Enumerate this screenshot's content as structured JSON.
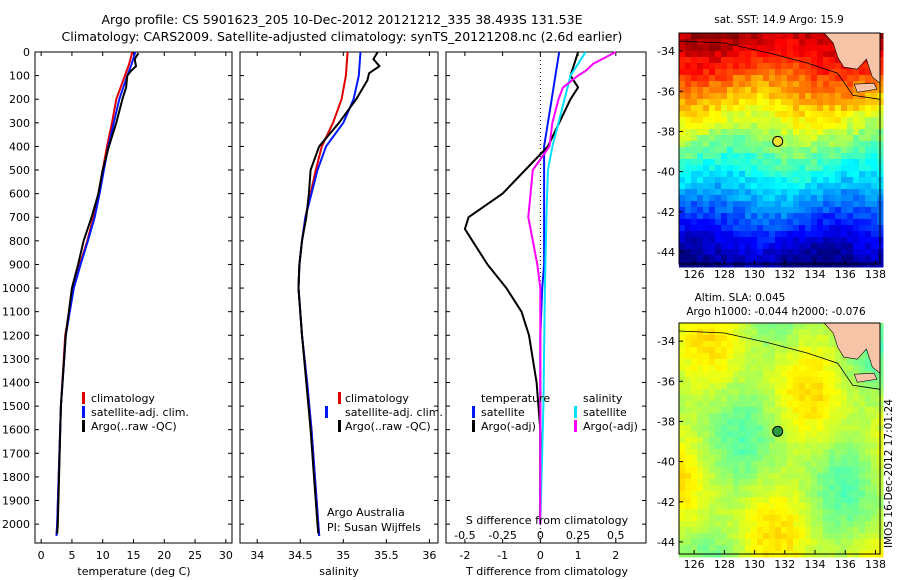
{
  "figure": {
    "title_line1": "Argo profile: CS 5901623_205 10-Dec-2012 20121212_335 38.493S 131.53E",
    "title_line2": "Climatology: CARS2009. Satellite-adjusted climatology: synTS_20121208.nc (2.6d earlier)",
    "credit_org": "Argo Australia",
    "credit_pi": "PI: Susan Wijffels",
    "imos_stamp": "IMOS 16-Dec-2012 17:01:24"
  },
  "colors": {
    "climatology": "#e00000",
    "satellite": "#0018ff",
    "argo": "#000000",
    "sal_satellite": "#00e0ff",
    "sal_argo": "#ff00ff"
  },
  "legend_profiles": [
    "climatology",
    "satellite-adj. clim.",
    "Argo(..raw -QC)"
  ],
  "legend_diff": {
    "temp_head": "temperature",
    "sal_head": "salinity",
    "temp_items": [
      "satellite",
      "Argo(-adj)"
    ],
    "sal_items": [
      "satellite",
      "Argo(-adj)"
    ]
  },
  "chart_data": [
    {
      "type": "line",
      "xlabel": "temperature (deg C)",
      "ylabel": "",
      "xlim": [
        -1,
        31
      ],
      "ylim": [
        2080,
        0
      ],
      "xticks": [
        0,
        5,
        10,
        15,
        20,
        25,
        30
      ],
      "yticks": [
        0,
        100,
        200,
        300,
        400,
        500,
        600,
        700,
        800,
        900,
        1000,
        1100,
        1200,
        1300,
        1400,
        1500,
        1600,
        1700,
        1800,
        1900,
        2000
      ],
      "series": [
        {
          "name": "climatology",
          "y": [
            0,
            50,
            100,
            200,
            300,
            400,
            500,
            600,
            700,
            800,
            900,
            1000,
            1200,
            1500,
            2000,
            2050
          ],
          "x": [
            14.8,
            14.3,
            13.6,
            12.2,
            11.5,
            10.7,
            10.0,
            9.3,
            8.5,
            7.5,
            6.3,
            5.2,
            3.9,
            3.2,
            2.6,
            2.5
          ]
        },
        {
          "name": "satellite-adj. clim.",
          "y": [
            0,
            50,
            100,
            200,
            300,
            400,
            500,
            600,
            700,
            800,
            900,
            1000,
            1200,
            1500,
            2000,
            2050
          ],
          "x": [
            15.3,
            14.7,
            14.0,
            12.7,
            11.8,
            10.9,
            10.2,
            9.5,
            8.7,
            7.6,
            6.4,
            5.3,
            4.0,
            3.2,
            2.6,
            2.5
          ]
        },
        {
          "name": "Argo(..raw -QC)",
          "y": [
            5,
            30,
            60,
            80,
            100,
            150,
            200,
            300,
            400,
            500,
            600,
            700,
            800,
            900,
            1000,
            1200,
            1500,
            2000,
            2040
          ],
          "x": [
            15.8,
            15.2,
            15.4,
            14.6,
            14.0,
            13.8,
            13.2,
            12.2,
            11.0,
            10.0,
            9.3,
            8.2,
            6.9,
            6.0,
            5.0,
            4.0,
            3.2,
            2.7,
            2.6
          ]
        }
      ]
    },
    {
      "type": "line",
      "xlabel": "salinity",
      "xlim": [
        33.8,
        36.1
      ],
      "ylim": [
        2080,
        0
      ],
      "xticks": [
        34,
        34.5,
        35,
        35.5,
        36
      ],
      "series": [
        {
          "name": "climatology",
          "y": [
            0,
            100,
            200,
            300,
            400,
            500,
            600,
            700,
            800,
            900,
            1000,
            1200,
            1400,
            1600,
            1800,
            2000,
            2050
          ],
          "x": [
            35.05,
            35.03,
            34.98,
            34.88,
            34.75,
            34.68,
            34.62,
            34.56,
            34.52,
            34.49,
            34.48,
            34.52,
            34.58,
            34.63,
            34.67,
            34.71,
            34.72
          ]
        },
        {
          "name": "satellite-adj. clim.",
          "y": [
            0,
            100,
            200,
            300,
            400,
            500,
            600,
            700,
            800,
            900,
            1000,
            1200,
            1400,
            1600,
            1800,
            2000,
            2050
          ],
          "x": [
            35.2,
            35.18,
            35.12,
            35.0,
            34.8,
            34.7,
            34.63,
            34.56,
            34.52,
            34.49,
            34.48,
            34.52,
            34.58,
            34.63,
            34.67,
            34.71,
            34.72
          ]
        },
        {
          "name": "Argo(..raw -QC)",
          "y": [
            0,
            30,
            60,
            90,
            120,
            200,
            300,
            400,
            500,
            600,
            700,
            800,
            900,
            1000,
            1200,
            1400,
            1600,
            1800,
            2000,
            2040
          ],
          "x": [
            35.4,
            35.35,
            35.42,
            35.3,
            35.28,
            35.15,
            34.95,
            34.72,
            34.62,
            34.6,
            34.57,
            34.52,
            34.49,
            34.48,
            34.52,
            34.57,
            34.62,
            34.66,
            34.7,
            34.71
          ]
        }
      ]
    },
    {
      "type": "line",
      "xlabel": "T difference from climatology",
      "xlabel_top": "S difference from climatology",
      "xlim": [
        -2.5,
        2.8
      ],
      "ylim": [
        2080,
        0
      ],
      "xticks": [
        -2,
        -1,
        0,
        1,
        2
      ],
      "xticks_sal": [
        -0.5,
        -0.25,
        0,
        0.25,
        0.5
      ],
      "series": [
        {
          "name": "T satellite",
          "y": [
            0,
            100,
            200,
            300,
            400,
            500,
            600,
            700,
            800,
            900,
            1000,
            1200,
            1500,
            2000
          ],
          "x": [
            0.5,
            0.4,
            0.3,
            0.2,
            0.1,
            0.1,
            0.1,
            0.1,
            0.1,
            0.1,
            0.05,
            0.0,
            0.0,
            0.0
          ]
        },
        {
          "name": "T Argo(-adj)",
          "y": [
            0,
            50,
            100,
            150,
            200,
            300,
            400,
            500,
            600,
            700,
            750,
            800,
            900,
            1000,
            1100,
            1200,
            1400,
            1600,
            2000
          ],
          "x": [
            1.0,
            0.9,
            0.8,
            1.0,
            0.8,
            0.5,
            0.2,
            -0.4,
            -1.0,
            -1.9,
            -2.0,
            -1.8,
            -1.4,
            -0.9,
            -0.5,
            -0.3,
            -0.1,
            0.0,
            0.0
          ]
        },
        {
          "name": "S satellite",
          "y": [
            0,
            50,
            100,
            200,
            300,
            400,
            500,
            700,
            1000,
            1500,
            2000
          ],
          "x": [
            0.3,
            0.25,
            0.2,
            0.16,
            0.12,
            0.08,
            0.05,
            0.04,
            0.03,
            0.02,
            0.0
          ]
        },
        {
          "name": "S Argo(-adj)",
          "y": [
            0,
            50,
            80,
            100,
            150,
            200,
            300,
            400,
            500,
            700,
            900,
            1000,
            1200,
            1500,
            2000
          ],
          "x": [
            0.5,
            0.35,
            0.3,
            0.25,
            0.15,
            0.12,
            0.08,
            0.06,
            -0.05,
            -0.08,
            -0.02,
            0.0,
            0.0,
            0.0,
            0.0
          ]
        }
      ]
    },
    {
      "type": "heatmap",
      "title": "sat. SST: 14.9 Argo: 15.9",
      "xlim": [
        125,
        138.3
      ],
      "ylim": [
        -44.6,
        -33.1
      ],
      "xticks": [
        126,
        128,
        130,
        132,
        134,
        136,
        138
      ],
      "yticks": [
        -34,
        -36,
        -38,
        -40,
        -42,
        -44
      ],
      "profile_marker": {
        "lon": 131.53,
        "lat": -38.493
      }
    },
    {
      "type": "heatmap",
      "title": "Altim. SLA: 0.045",
      "subtitle": "Argo h1000: -0.044 h2000: -0.076",
      "xlim": [
        125,
        138.3
      ],
      "ylim": [
        -44.6,
        -33.1
      ],
      "xticks": [
        126,
        128,
        130,
        132,
        134,
        136,
        138
      ],
      "yticks": [
        -34,
        -36,
        -38,
        -40,
        -42,
        -44
      ],
      "profile_marker": {
        "lon": 131.53,
        "lat": -38.493
      }
    }
  ]
}
